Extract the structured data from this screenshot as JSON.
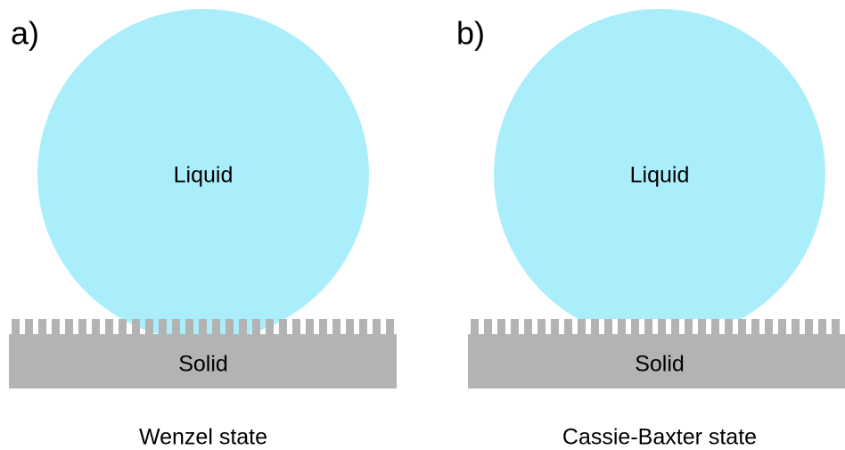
{
  "panels": [
    {
      "label": "a)",
      "liquid": "Liquid",
      "solid": "Solid",
      "state": "Wenzel state"
    },
    {
      "label": "b)",
      "liquid": "Liquid",
      "solid": "Solid",
      "state": "Cassie-Baxter state"
    }
  ]
}
